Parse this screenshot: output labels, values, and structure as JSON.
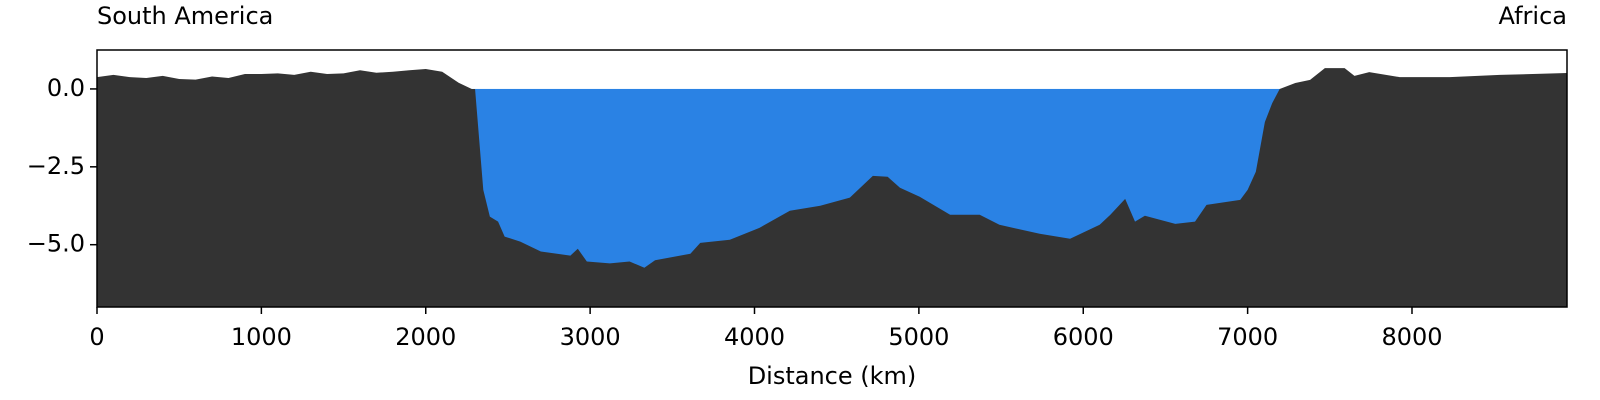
{
  "chart_data": {
    "type": "area",
    "xlabel": "Distance (km)",
    "left_label": "South America",
    "right_label": "Africa",
    "x": [
      0,
      100,
      200,
      300,
      400,
      500,
      600,
      700,
      800,
      900,
      1000,
      1100,
      1200,
      1300,
      1400,
      1500,
      1600,
      1700,
      1800,
      1900,
      2000,
      2100,
      2200,
      2280,
      2300,
      2350,
      2390,
      2440,
      2480,
      2575,
      2700,
      2880,
      2925,
      2980,
      3120,
      3240,
      3330,
      3395,
      3610,
      3670,
      3850,
      4030,
      4215,
      4400,
      4580,
      4720,
      4810,
      4885,
      5005,
      5190,
      5370,
      5490,
      5735,
      5920,
      6100,
      6165,
      6255,
      6315,
      6375,
      6560,
      6680,
      6750,
      6955,
      7000,
      7050,
      7105,
      7150,
      7195,
      7290,
      7380,
      7470,
      7590,
      7650,
      7740,
      7925,
      8230,
      8535,
      8943
    ],
    "values": [
      0.38,
      0.45,
      0.38,
      0.35,
      0.42,
      0.32,
      0.3,
      0.4,
      0.35,
      0.48,
      0.48,
      0.5,
      0.45,
      0.55,
      0.48,
      0.5,
      0.6,
      0.52,
      0.55,
      0.6,
      0.64,
      0.55,
      0.2,
      0,
      0,
      -3.24,
      -4.1,
      -4.26,
      -4.74,
      -4.9,
      -5.22,
      -5.35,
      -5.13,
      -5.54,
      -5.6,
      -5.54,
      -5.74,
      -5.5,
      -5.29,
      -4.94,
      -4.84,
      -4.46,
      -3.91,
      -3.75,
      -3.49,
      -2.79,
      -2.82,
      -3.17,
      -3.46,
      -4.04,
      -4.04,
      -4.36,
      -4.65,
      -4.81,
      -4.36,
      -4.04,
      -3.53,
      -4.26,
      -4.07,
      -4.33,
      -4.26,
      -3.72,
      -3.56,
      -3.24,
      -2.66,
      -1.06,
      -0.45,
      0,
      0.19,
      0.29,
      0.67,
      0.67,
      0.42,
      0.54,
      0.38,
      0.38,
      0.45,
      0.51
    ],
    "land_color": "#333333",
    "water_color": "#2a82e4",
    "xlim": [
      0,
      8943
    ],
    "ylim": [
      -7,
      1.25
    ],
    "xticks": [
      0,
      1000,
      2000,
      3000,
      4000,
      5000,
      6000,
      7000,
      8000
    ],
    "yticks": [
      {
        "value": 0,
        "label": "0.0"
      },
      {
        "value": -2.5,
        "label": "−2.5"
      },
      {
        "value": -5,
        "label": "−5.0"
      }
    ]
  }
}
